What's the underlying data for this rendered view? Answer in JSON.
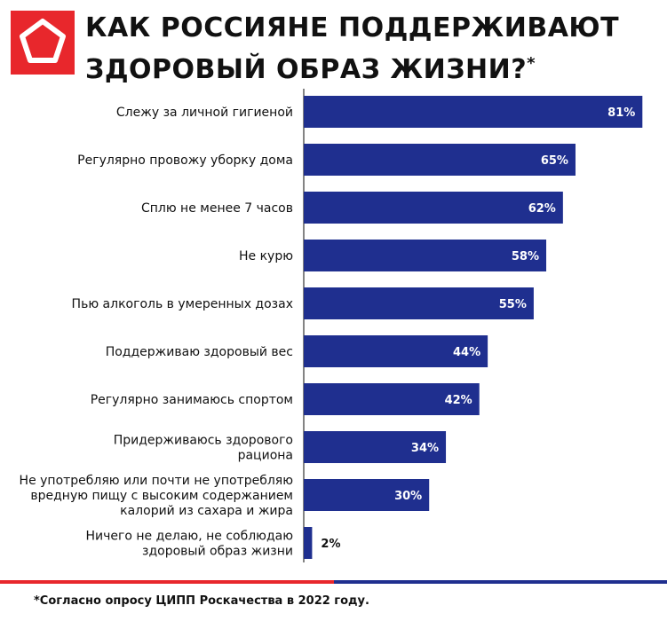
{
  "header": {
    "title_line1": "КАК РОССИЯНЕ ПОДДЕРЖИВАЮТ",
    "title_line2": "ЗДОРОВЫЙ ОБРАЗ ЖИЗНИ?",
    "title_mark": "*"
  },
  "colors": {
    "bar": "#1f2f8f",
    "brand_red": "#e8272c",
    "brand_blue": "#1f2f8f",
    "axis": "#333333",
    "text": "#111111"
  },
  "logo": {
    "icon": "pentagon-logo-icon"
  },
  "chart_data": {
    "type": "bar",
    "orientation": "horizontal",
    "categories": [
      [
        "Слежу за личной гигиеной"
      ],
      [
        "Регулярно провожу уборку дома"
      ],
      [
        "Сплю не менее 7 часов"
      ],
      [
        "Не курю"
      ],
      [
        "Пью алкоголь в умеренных дозах"
      ],
      [
        "Поддерживаю здоровый вес"
      ],
      [
        "Регулярно занимаюсь спортом"
      ],
      [
        "Придерживаюсь здорового",
        "рациона"
      ],
      [
        "Не употребляю или почти не употребляю",
        "вредную пищу с высоким содержанием",
        "калорий из сахара и жира"
      ],
      [
        "Ничего не делаю, не соблюдаю",
        "здоровый образ жизни"
      ]
    ],
    "values": [
      81,
      65,
      62,
      58,
      55,
      44,
      42,
      34,
      30,
      2
    ],
    "value_labels": [
      "81%",
      "65%",
      "62%",
      "58%",
      "55%",
      "44%",
      "42%",
      "34%",
      "30%",
      "2%"
    ],
    "xlim": [
      0,
      82
    ],
    "grid": false,
    "legend": "none"
  },
  "footnote": "*Согласно опросу ЦИПП Роскачества в 2022 году."
}
